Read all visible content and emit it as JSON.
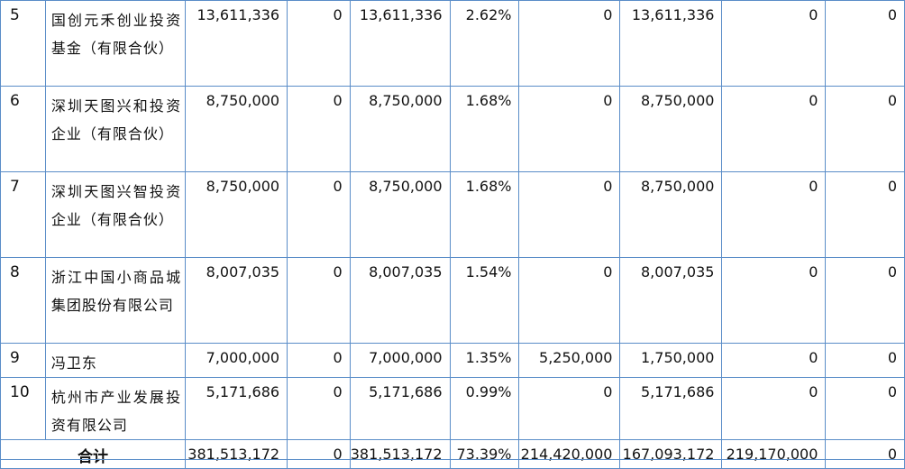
{
  "rows": [
    {
      "idx": "5",
      "name": "国创元禾创业投资基金（有限合伙）",
      "c1": "13,611,336",
      "c2": "0",
      "c3": "13,611,336",
      "c4": "2.62%",
      "c5": "0",
      "c6": "13,611,336",
      "c7": "0",
      "c8": "0"
    },
    {
      "idx": "6",
      "name": "深圳天图兴和投资企业（有限合伙）",
      "c1": "8,750,000",
      "c2": "0",
      "c3": "8,750,000",
      "c4": "1.68%",
      "c5": "0",
      "c6": "8,750,000",
      "c7": "0",
      "c8": "0"
    },
    {
      "idx": "7",
      "name": "深圳天图兴智投资企业（有限合伙）",
      "c1": "8,750,000",
      "c2": "0",
      "c3": "8,750,000",
      "c4": "1.68%",
      "c5": "0",
      "c6": "8,750,000",
      "c7": "0",
      "c8": "0"
    },
    {
      "idx": "8",
      "name": "浙江中国小商品城集团股份有限公司",
      "c1": "8,007,035",
      "c2": "0",
      "c3": "8,007,035",
      "c4": "1.54%",
      "c5": "0",
      "c6": "8,007,035",
      "c7": "0",
      "c8": "0"
    },
    {
      "idx": "9",
      "name": "冯卫东",
      "c1": "7,000,000",
      "c2": "0",
      "c3": "7,000,000",
      "c4": "1.35%",
      "c5": "5,250,000",
      "c6": "1,750,000",
      "c7": "0",
      "c8": "0"
    },
    {
      "idx": "10",
      "name": "杭州市产业发展投资有限公司",
      "c1": "5,171,686",
      "c2": "0",
      "c3": "5,171,686",
      "c4": "0.99%",
      "c5": "0",
      "c6": "5,171,686",
      "c7": "0",
      "c8": "0"
    }
  ],
  "total": {
    "label": "合计",
    "c1": "381,513,172",
    "c2": "0",
    "c3": "381,513,172",
    "c4": "73.39%",
    "c5": "214,420,000",
    "c6": "167,093,172",
    "c7": "219,170,000",
    "c8": "0"
  }
}
